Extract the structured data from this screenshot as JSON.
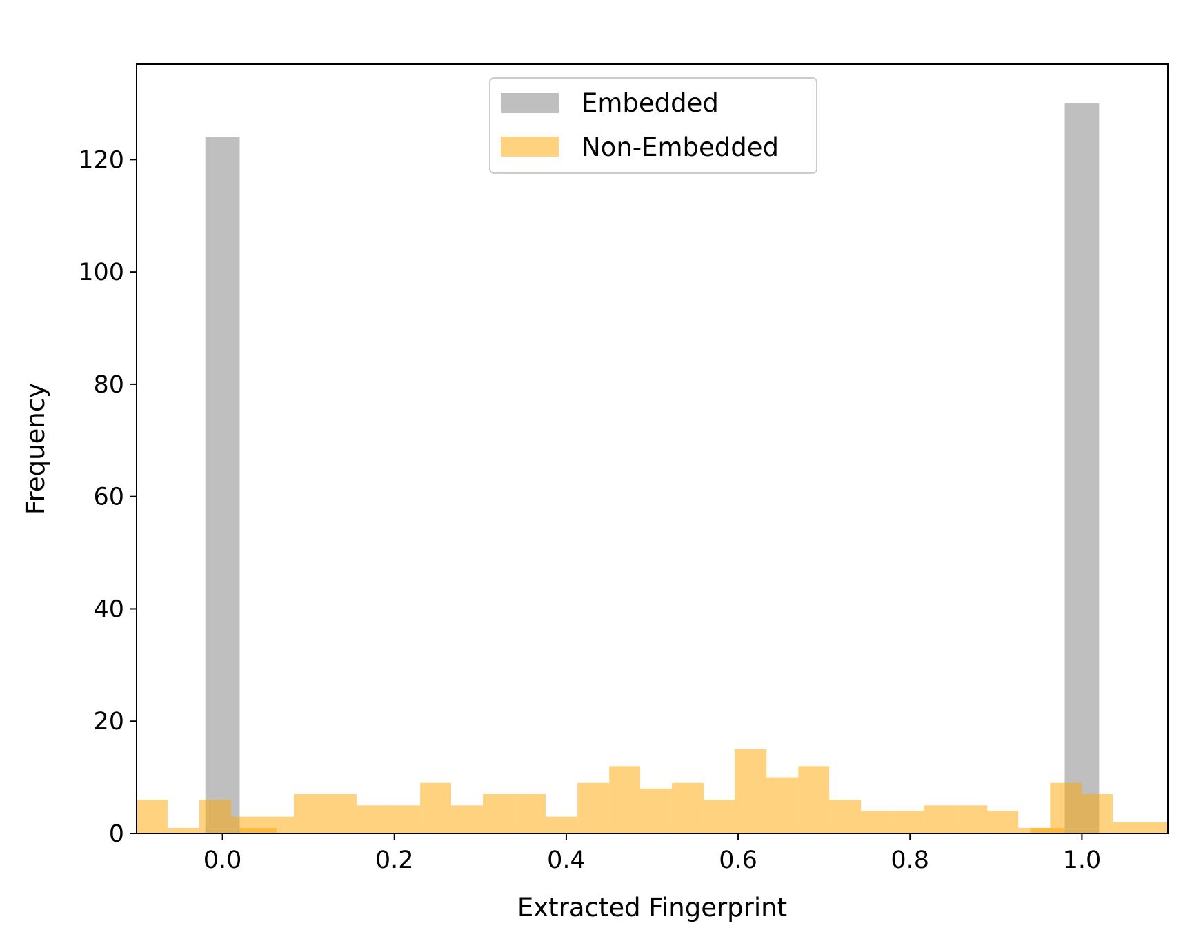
{
  "chart_data": {
    "type": "bar",
    "title": "",
    "xlabel": "Extracted Fingerprint",
    "ylabel": "Frequency",
    "xlim": [
      -0.1,
      1.1
    ],
    "ylim": [
      0,
      137
    ],
    "xticks": [
      0.0,
      0.2,
      0.4,
      0.6,
      0.8,
      1.0
    ],
    "xtick_labels": [
      "0.0",
      "0.2",
      "0.4",
      "0.6",
      "0.8",
      "1.0"
    ],
    "yticks": [
      0,
      20,
      40,
      60,
      80,
      100,
      120
    ],
    "ytick_labels": [
      "0",
      "20",
      "40",
      "60",
      "80",
      "100",
      "120"
    ],
    "grid": false,
    "legend_position": "top-center",
    "series": [
      {
        "name": "Embedded",
        "color": "#bfbfbf",
        "opacity": 1.0,
        "bins": [
          [
            -0.02,
            0.02,
            124
          ],
          [
            0.98,
            1.02,
            130
          ]
        ]
      },
      {
        "name": "Non-Embedded",
        "color": "#ffa500",
        "opacity": 0.5,
        "bins": [
          [
            -0.1,
            -0.064,
            6
          ],
          [
            -0.064,
            -0.027,
            1
          ],
          [
            -0.027,
            0.01,
            6
          ],
          [
            0.01,
            0.046,
            3
          ],
          [
            0.046,
            0.083,
            3
          ],
          [
            0.083,
            0.12,
            7
          ],
          [
            0.12,
            0.156,
            7
          ],
          [
            0.156,
            0.193,
            5
          ],
          [
            0.193,
            0.23,
            5
          ],
          [
            0.23,
            0.266,
            9
          ],
          [
            0.266,
            0.303,
            5
          ],
          [
            0.303,
            0.34,
            7
          ],
          [
            0.34,
            0.376,
            7
          ],
          [
            0.376,
            0.413,
            3
          ],
          [
            0.413,
            0.45,
            9
          ],
          [
            0.45,
            0.486,
            12
          ],
          [
            0.486,
            0.523,
            8
          ],
          [
            0.523,
            0.56,
            9
          ],
          [
            0.56,
            0.596,
            6
          ],
          [
            0.596,
            0.633,
            15
          ],
          [
            0.633,
            0.67,
            10
          ],
          [
            0.67,
            0.706,
            12
          ],
          [
            0.706,
            0.743,
            6
          ],
          [
            0.743,
            0.78,
            4
          ],
          [
            0.78,
            0.816,
            4
          ],
          [
            0.816,
            0.853,
            5
          ],
          [
            0.853,
            0.89,
            5
          ],
          [
            0.89,
            0.926,
            4
          ],
          [
            0.926,
            0.963,
            1
          ],
          [
            0.963,
            1.0,
            9
          ],
          [
            1.0,
            1.036,
            7
          ],
          [
            1.036,
            1.1,
            2
          ]
        ]
      },
      {
        "name": "",
        "color": "#ffa500",
        "opacity": 0.5,
        "bins": [
          [
            0.02,
            0.063,
            1
          ],
          [
            0.94,
            0.98,
            1
          ]
        ]
      }
    ]
  }
}
